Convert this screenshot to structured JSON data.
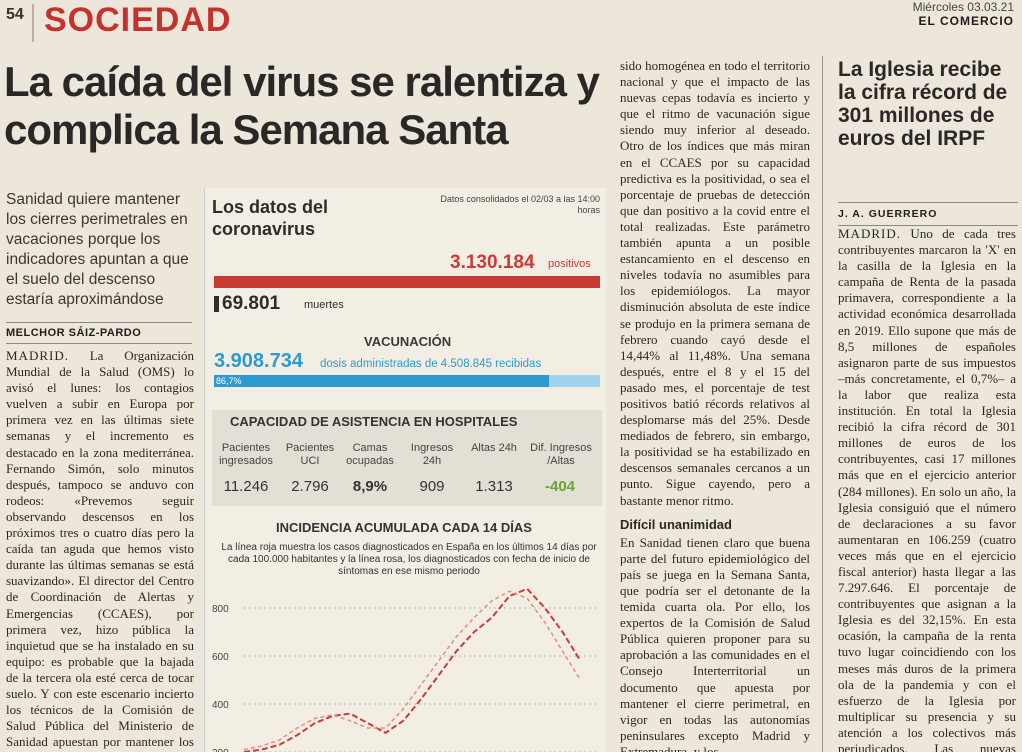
{
  "header": {
    "page_number": "54",
    "section": "SOCIEDAD",
    "date": "Miércoles 03.03.21",
    "paper": "EL COMERCIO"
  },
  "article": {
    "headline": "La caída del virus se ralentiza y complica la Semana Santa",
    "dek": "Sanidad quiere mantener los cierres perimetrales en vacaciones porque los indicadores apuntan a que el suelo del descenso estaría aproximándose",
    "author": "MELCHOR SÁIZ-PARDO",
    "dateline": "MADRID.",
    "col1": " La Organización Mundial de la Salud (OMS) lo avisó el lunes: los contagios vuelven a subir en Europa por primera vez en las últimas siete semanas y el incremento es destacado en la zona mediterránea. Fernando Simón, solo minutos después, tampoco se anduvo con rodeos: «Prevemos seguir observando descensos en los próximos tres o cuatro días pero la caída tan aguda que hemos visto durante las últimas semanas se está suavizando». El director del Centro de Coordinación de Alertas y Emergencias (CCAES), por primera vez, hizo pública la inquietud que se ha instalado en su equipo: es probable que la bajada de la tercera ola esté cerca de tocar suelo. Y con este escenario incierto los técnicos de la Comisión de Salud Pública del Ministerio de Sanidad apuestan por mantener los cierres perimetrales en Semana Santa.",
    "col3a": "sido homogénea en todo el territorio nacional y que el impacto de las nuevas cepas todavía es incierto y que el ritmo de vacunación sigue siendo muy inferior al deseado. Otro de los índices que más miran en el CCAES por su capacidad predictiva es la positividad, o sea el porcentaje de pruebas de detección que dan positivo a la covid entre el total realizadas. Este parámetro también apunta a un posible estancamiento en el descenso en niveles todavía no asumibles para los epidemiólogos. La mayor disminución absoluta de este índice se produjo en la primera semana de febrero cuando cayó desde el 14,44% al 11,48%. Una semana después, entre el 8 y el 15 del pasado mes, el porcentaje de test positivos batió récords relativos al desplomarse más del 25%. Desde mediados de febrero, sin embargo, la positividad se ha estabilizado en descensos semanales cercanos a un punto. Sigue cayendo, pero a bastante menor ritmo.",
    "col3_subhead": "Difícil unanimidad",
    "col3b": "En Sanidad tienen claro que buena parte del futuro epidemiológico del país se juega en la Semana Santa, que podría ser el detonante de la temida cuarta ola. Por ello, los expertos de la Comisión de Salud Pública quieren proponer para su aprobación a las comunidades en el Consejo Interterritorial un documento que apuesta por mantener el cierre perimetral, en vigor en todas las autonomías peninsulares excepto Madrid y Extremadura, y los"
  },
  "side": {
    "headline": "La Iglesia recibe la cifra récord de 301 millones de euros del IRPF",
    "author": "J. A. GUERRERO",
    "dateline": "MADRID.",
    "text": " Uno de cada tres contribuyentes marcaron la 'X' en la casilla de la Iglesia en la campaña de Renta de la pasada primavera, correspondiente a la actividad económica desarrollada en 2019. Ello supone que más de 8,5 millones de españoles asignaron parte de sus impuestos –más concretamente, el 0,7%– a la labor que realiza esta institución. En total la Iglesia recibió la cifra récord de 301 millones de euros de los contribuyentes, casi 17 millones más que en el ejercicio anterior (284 millones). En solo un año, la Iglesia consiguió que el número de declaraciones a su favor aumentaran en 106.259 (cuatro veces más que en el ejercicio fiscal anterior) hasta llegar a las 7.297.646. El porcentaje de contribuyentes que asignan a la Iglesia es del 32,15%. En esta ocasión, la campaña de la renta tuvo lugar coincidiendo con los meses más duros de la primera ola de la pandemia y con el esfuerzo de la Iglesia por multiplicar su presencia y su atención a los colectivos más perjudicados. Las nuevas declaraciones que"
  },
  "infobox": {
    "title": "Los datos del coronavirus",
    "note": "Datos consolidados el 02/03 a las 14:00 horas",
    "positives": "3.130.184",
    "positives_label": "positivos",
    "deaths": "69.801",
    "deaths_label": "muertes",
    "vac_title": "VACUNACIÓN",
    "vac_num": "3.908.734",
    "vac_label": "dosis administradas de 4.508.845 recibidas",
    "vac_pct_label": "86,7%",
    "vac_fraction": 0.867,
    "hosp_title": "CAPACIDAD DE ASISTENCIA EN HOSPITALES",
    "hosp": [
      {
        "h": "Pacientes ingresados",
        "v": "11.246"
      },
      {
        "h": "Pacientes UCI",
        "v": "2.796"
      },
      {
        "h": "Camas ocupadas",
        "v": "8,9%"
      },
      {
        "h": "Ingresos 24h",
        "v": "909"
      },
      {
        "h": "Altas 24h",
        "v": "1.313"
      },
      {
        "h": "Dif. Ingresos /Altas",
        "v": "-404"
      }
    ],
    "inc_title": "INCIDENCIA ACUMULADA CADA 14 DÍAS",
    "inc_note": "La línea roja muestra los casos diagnosticados en España en los últimos 14 días por cada 100.000 habitantes y la línea rosa, los diagnosticados con fecha de inicio de síntomas en ese mismo periodo",
    "colors": {
      "red": "#cb3b36",
      "blue": "#2d9ad0",
      "green": "#6ca33c"
    }
  },
  "chart_data": {
    "type": "line",
    "title": "INCIDENCIA ACUMULADA CADA 14 DÍAS",
    "ytick_labels": [
      "800",
      "600",
      "400",
      "200"
    ],
    "ylim": [
      200,
      900
    ],
    "series": [
      {
        "name": "línea roja",
        "values": [
          200,
          210,
          230,
          270,
          320,
          350,
          360,
          320,
          280,
          330,
          420,
          520,
          620,
          700,
          760,
          850,
          880,
          800,
          700,
          580
        ]
      },
      {
        "name": "línea rosa",
        "values": [
          210,
          225,
          250,
          300,
          340,
          355,
          330,
          300,
          300,
          380,
          480,
          580,
          680,
          760,
          830,
          870,
          840,
          740,
          620,
          500
        ]
      }
    ]
  }
}
